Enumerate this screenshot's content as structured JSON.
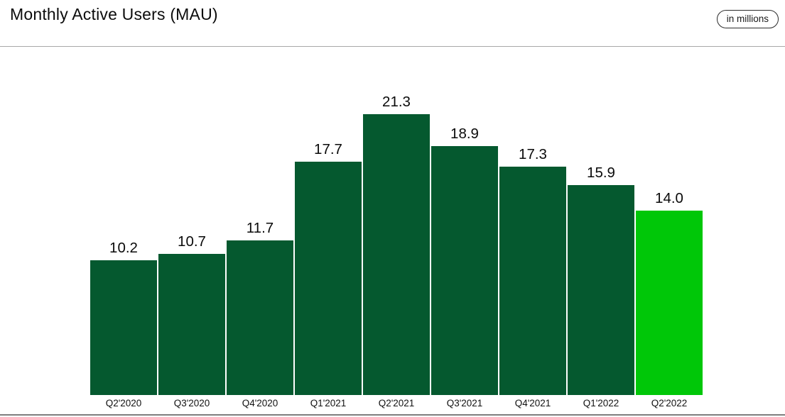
{
  "header": {
    "title": "Monthly Active Users (MAU)",
    "badge_label": "in millions"
  },
  "chart_data": {
    "type": "bar",
    "title": "Monthly Active Users (MAU)",
    "unit_note": "in millions",
    "categories": [
      "Q2'2020",
      "Q3'2020",
      "Q4'2020",
      "Q1'2021",
      "Q2'2021",
      "Q3'2021",
      "Q4'2021",
      "Q1'2022",
      "Q2'2022"
    ],
    "values": [
      10.2,
      10.7,
      11.7,
      17.7,
      21.3,
      18.9,
      17.3,
      15.9,
      14.0
    ],
    "value_labels": [
      "10.2",
      "10.7",
      "11.7",
      "17.7",
      "21.3",
      "18.9",
      "17.3",
      "15.9",
      "14.0"
    ],
    "xlabel": "",
    "ylabel": "",
    "ylim": [
      0,
      22
    ],
    "grid": false,
    "legend": "none",
    "bar_color": "#05592f",
    "highlight_color": "#00c708",
    "highlight_index": 8,
    "value_label_color": "#0a0a0a"
  }
}
